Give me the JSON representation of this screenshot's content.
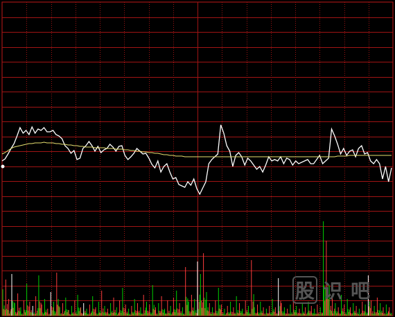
{
  "chart_data": {
    "type": "line",
    "title": "",
    "grid": true,
    "series": [
      {
        "kind": "price",
        "color": "#ffffff",
        "values": [
          232,
          229,
          222,
          214,
          207,
          196,
          184,
          192,
          188,
          194,
          183,
          192,
          186,
          188,
          184,
          190,
          190,
          188,
          194,
          196,
          200,
          210,
          214,
          221,
          217,
          230,
          228,
          214,
          210,
          204,
          210,
          218,
          211,
          220,
          216,
          214,
          208,
          212,
          218,
          211,
          210,
          224,
          230,
          226,
          221,
          214,
          218,
          222,
          221,
          228,
          237,
          242,
          232,
          248,
          240,
          236,
          248,
          258,
          256,
          266,
          268,
          270,
          262,
          267,
          258,
          272,
          280,
          271,
          262,
          236,
          230,
          226,
          222,
          180,
          192,
          210,
          218,
          240,
          224,
          220,
          226,
          238,
          228,
          232,
          238,
          244,
          240,
          248,
          238,
          226,
          232,
          230,
          232,
          226,
          236,
          228,
          230,
          238,
          232,
          236,
          234,
          232,
          230,
          236,
          236,
          230,
          224,
          236,
          232,
          228,
          186,
          196,
          208,
          222,
          214,
          224,
          218,
          216,
          226,
          214,
          210,
          222,
          220,
          232,
          236,
          230,
          236,
          258,
          240,
          262,
          242
        ]
      },
      {
        "kind": "average",
        "color": "#e8e070",
        "values": [
          222,
          220,
          217,
          214,
          212,
          211,
          210,
          209,
          208,
          207,
          207,
          206,
          206,
          206,
          205,
          206,
          206,
          206,
          207,
          207,
          208,
          208,
          209,
          209,
          210,
          210,
          211,
          211,
          212,
          212,
          212,
          213,
          213,
          213,
          213,
          214,
          214,
          214,
          215,
          215,
          215,
          216,
          216,
          217,
          217,
          218,
          218,
          219,
          219,
          220,
          220,
          221,
          221,
          222,
          223,
          223,
          224,
          224,
          225,
          225,
          225,
          226,
          226,
          226,
          226,
          226,
          226,
          226,
          226,
          226,
          226,
          226,
          226,
          226,
          226,
          226,
          226,
          226,
          226,
          226,
          226,
          226,
          226,
          226,
          226,
          226,
          226,
          226,
          226,
          226,
          226,
          226,
          226,
          226,
          226,
          226,
          226,
          226,
          226,
          226,
          226,
          226,
          226,
          226,
          226,
          226,
          226,
          226,
          226,
          226,
          226,
          226,
          225,
          225,
          225,
          225,
          224,
          224,
          224,
          224,
          224,
          224,
          224,
          224,
          224,
          224,
          224,
          224,
          224,
          224,
          224
        ]
      }
    ],
    "volume": [
      {
        "v": 38,
        "c": "g"
      },
      {
        "v": 52,
        "c": "r"
      },
      {
        "v": 24,
        "c": "r"
      },
      {
        "v": 60,
        "c": "w"
      },
      {
        "v": 18,
        "c": "g"
      },
      {
        "v": 32,
        "c": "r"
      },
      {
        "v": 12,
        "c": "g"
      },
      {
        "v": 22,
        "c": "r"
      },
      {
        "v": 46,
        "c": "g"
      },
      {
        "v": 20,
        "c": "r"
      },
      {
        "v": 14,
        "c": "w"
      },
      {
        "v": 28,
        "c": "r"
      },
      {
        "v": 58,
        "c": "g"
      },
      {
        "v": 16,
        "c": "r"
      },
      {
        "v": 24,
        "c": "g"
      },
      {
        "v": 10,
        "c": "r"
      },
      {
        "v": 34,
        "c": "w"
      },
      {
        "v": 20,
        "c": "g"
      },
      {
        "v": 62,
        "c": "r"
      },
      {
        "v": 12,
        "c": "g"
      },
      {
        "v": 18,
        "c": "r"
      },
      {
        "v": 26,
        "c": "g"
      },
      {
        "v": 8,
        "c": "r"
      },
      {
        "v": 14,
        "c": "g"
      },
      {
        "v": 22,
        "c": "r"
      },
      {
        "v": 30,
        "c": "g"
      },
      {
        "v": 12,
        "c": "r"
      },
      {
        "v": 18,
        "c": "w"
      },
      {
        "v": 10,
        "c": "g"
      },
      {
        "v": 16,
        "c": "r"
      },
      {
        "v": 28,
        "c": "g"
      },
      {
        "v": 12,
        "c": "r"
      },
      {
        "v": 20,
        "c": "g"
      },
      {
        "v": 36,
        "c": "r"
      },
      {
        "v": 14,
        "c": "g"
      },
      {
        "v": 10,
        "c": "r"
      },
      {
        "v": 18,
        "c": "g"
      },
      {
        "v": 26,
        "c": "r"
      },
      {
        "v": 12,
        "c": "g"
      },
      {
        "v": 22,
        "c": "r"
      },
      {
        "v": 40,
        "c": "g"
      },
      {
        "v": 16,
        "c": "r"
      },
      {
        "v": 10,
        "c": "g"
      },
      {
        "v": 14,
        "c": "r"
      },
      {
        "v": 24,
        "c": "g"
      },
      {
        "v": 18,
        "c": "r"
      },
      {
        "v": 12,
        "c": "g"
      },
      {
        "v": 30,
        "c": "r"
      },
      {
        "v": 20,
        "c": "g"
      },
      {
        "v": 16,
        "c": "r"
      },
      {
        "v": 44,
        "c": "g"
      },
      {
        "v": 12,
        "c": "r"
      },
      {
        "v": 18,
        "c": "g"
      },
      {
        "v": 28,
        "c": "r"
      },
      {
        "v": 10,
        "c": "g"
      },
      {
        "v": 22,
        "c": "r"
      },
      {
        "v": 14,
        "c": "g"
      },
      {
        "v": 26,
        "c": "r"
      },
      {
        "v": 36,
        "c": "g"
      },
      {
        "v": 18,
        "c": "r"
      },
      {
        "v": 12,
        "c": "g"
      },
      {
        "v": 70,
        "c": "r"
      },
      {
        "v": 20,
        "c": "g"
      },
      {
        "v": 30,
        "c": "r"
      },
      {
        "v": 24,
        "c": "g"
      },
      {
        "v": 78,
        "c": "w"
      },
      {
        "v": 60,
        "c": "g"
      },
      {
        "v": 90,
        "c": "r"
      },
      {
        "v": 34,
        "c": "g"
      },
      {
        "v": 18,
        "c": "r"
      },
      {
        "v": 12,
        "c": "g"
      },
      {
        "v": 22,
        "c": "r"
      },
      {
        "v": 40,
        "c": "g"
      },
      {
        "v": 16,
        "c": "r"
      },
      {
        "v": 10,
        "c": "g"
      },
      {
        "v": 14,
        "c": "r"
      },
      {
        "v": 20,
        "c": "g"
      },
      {
        "v": 12,
        "c": "r"
      },
      {
        "v": 28,
        "c": "g"
      },
      {
        "v": 18,
        "c": "r"
      },
      {
        "v": 10,
        "c": "g"
      },
      {
        "v": 22,
        "c": "r"
      },
      {
        "v": 14,
        "c": "g"
      },
      {
        "v": 80,
        "c": "r"
      },
      {
        "v": 12,
        "c": "g"
      },
      {
        "v": 16,
        "c": "r"
      },
      {
        "v": 20,
        "c": "g"
      },
      {
        "v": 12,
        "c": "r"
      },
      {
        "v": 10,
        "c": "g"
      },
      {
        "v": 14,
        "c": "r"
      },
      {
        "v": 24,
        "c": "g"
      },
      {
        "v": 12,
        "c": "r"
      },
      {
        "v": 54,
        "c": "w"
      },
      {
        "v": 18,
        "c": "r"
      },
      {
        "v": 12,
        "c": "g"
      },
      {
        "v": 10,
        "c": "r"
      },
      {
        "v": 16,
        "c": "g"
      },
      {
        "v": 22,
        "c": "r"
      },
      {
        "v": 14,
        "c": "g"
      },
      {
        "v": 10,
        "c": "r"
      },
      {
        "v": 18,
        "c": "g"
      },
      {
        "v": 12,
        "c": "r"
      },
      {
        "v": 20,
        "c": "g"
      },
      {
        "v": 14,
        "c": "r"
      },
      {
        "v": 10,
        "c": "g"
      },
      {
        "v": 16,
        "c": "r"
      },
      {
        "v": 12,
        "c": "g"
      },
      {
        "v": 136,
        "c": "g"
      },
      {
        "v": 108,
        "c": "r"
      },
      {
        "v": 44,
        "c": "g"
      },
      {
        "v": 26,
        "c": "r"
      },
      {
        "v": 18,
        "c": "g"
      },
      {
        "v": 12,
        "c": "r"
      },
      {
        "v": 30,
        "c": "g"
      },
      {
        "v": 16,
        "c": "r"
      },
      {
        "v": 24,
        "c": "g"
      },
      {
        "v": 12,
        "c": "r"
      },
      {
        "v": 18,
        "c": "g"
      },
      {
        "v": 14,
        "c": "r"
      },
      {
        "v": 10,
        "c": "g"
      },
      {
        "v": 20,
        "c": "r"
      },
      {
        "v": 16,
        "c": "g"
      },
      {
        "v": 58,
        "c": "w"
      },
      {
        "v": 22,
        "c": "r"
      },
      {
        "v": 14,
        "c": "g"
      },
      {
        "v": 26,
        "c": "r"
      },
      {
        "v": 18,
        "c": "g"
      },
      {
        "v": 12,
        "c": "r"
      },
      {
        "v": 16,
        "c": "g"
      },
      {
        "v": 12,
        "c": "r"
      }
    ],
    "colors": {
      "grid": "#a01414",
      "up": "#ff3c3c",
      "down": "#00d000",
      "neutral": "#ffffff"
    }
  },
  "watermark": {
    "chars": [
      "股",
      "识",
      "吧"
    ]
  }
}
